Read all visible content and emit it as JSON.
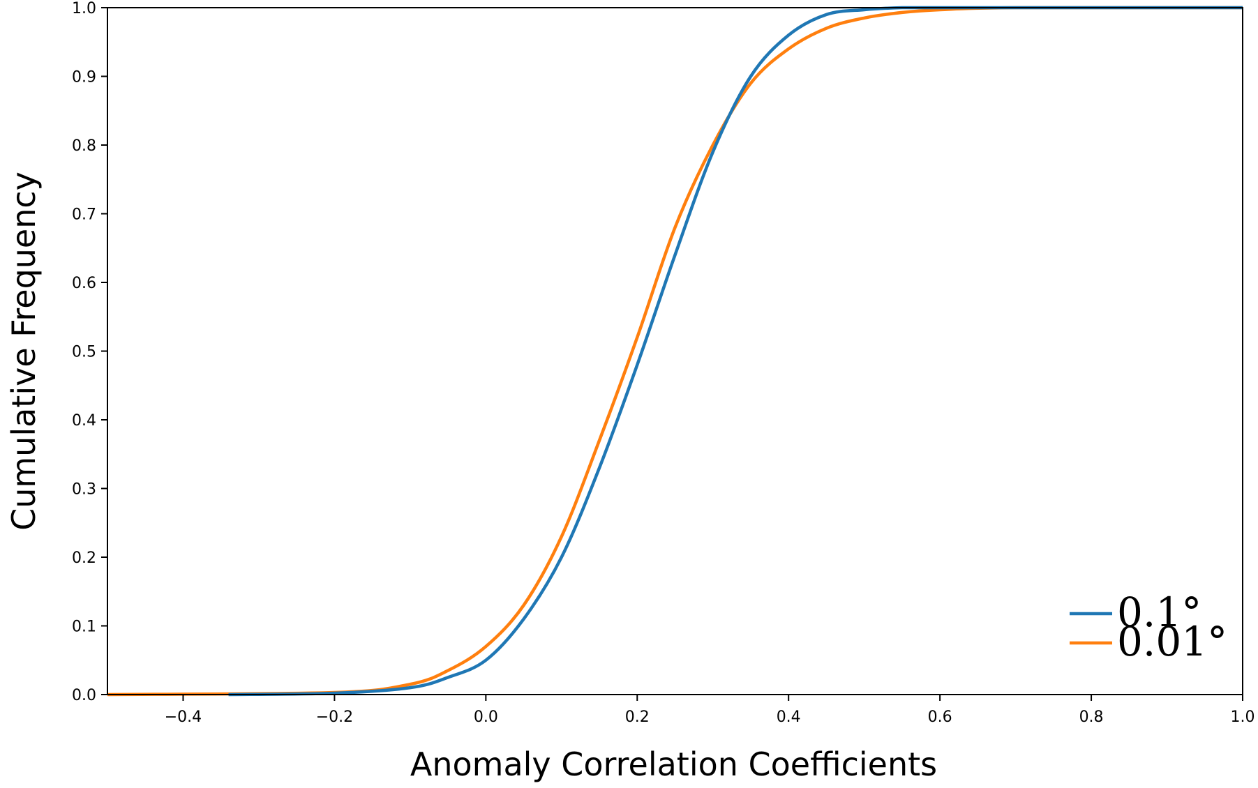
{
  "chart_data": {
    "type": "line",
    "title": "",
    "xlabel": "Anomaly Correlation Coefficients",
    "ylabel": "Cumulative Frequency",
    "xlim": [
      -0.5,
      1.0
    ],
    "ylim": [
      0.0,
      1.0
    ],
    "xticks": [
      -0.4,
      -0.2,
      0.0,
      0.2,
      0.4,
      0.6,
      0.8,
      1.0
    ],
    "xtick_labels": [
      "−0.4",
      "−0.2",
      "0.0",
      "0.2",
      "0.4",
      "0.6",
      "0.8",
      "1.0"
    ],
    "yticks": [
      0.0,
      0.1,
      0.2,
      0.3,
      0.4,
      0.5,
      0.6,
      0.7,
      0.8,
      0.9,
      1.0
    ],
    "ytick_labels": [
      "0.0",
      "0.1",
      "0.2",
      "0.3",
      "0.4",
      "0.5",
      "0.6",
      "0.7",
      "0.8",
      "0.9",
      "1.0"
    ],
    "grid": false,
    "legend_position": "bottom-right",
    "series": [
      {
        "name": "0.1°",
        "color": "#1f77b4",
        "x": [
          -0.34,
          -0.2,
          -0.1,
          -0.05,
          0.0,
          0.05,
          0.1,
          0.15,
          0.2,
          0.25,
          0.3,
          0.35,
          0.4,
          0.45,
          0.5,
          0.55,
          0.6,
          1.0
        ],
        "y": [
          0.0,
          0.002,
          0.01,
          0.025,
          0.05,
          0.11,
          0.2,
          0.33,
          0.48,
          0.64,
          0.79,
          0.9,
          0.96,
          0.99,
          0.997,
          1.0,
          1.0,
          1.0
        ]
      },
      {
        "name": "0.01°",
        "color": "#ff7f0e",
        "x": [
          -0.5,
          -0.2,
          -0.1,
          -0.05,
          0.0,
          0.05,
          0.1,
          0.15,
          0.2,
          0.25,
          0.3,
          0.35,
          0.4,
          0.45,
          0.5,
          0.55,
          0.6,
          0.7,
          1.0
        ],
        "y": [
          0.0,
          0.003,
          0.015,
          0.035,
          0.07,
          0.13,
          0.23,
          0.37,
          0.52,
          0.68,
          0.8,
          0.89,
          0.94,
          0.97,
          0.985,
          0.993,
          0.997,
          1.0,
          1.0
        ]
      }
    ]
  }
}
